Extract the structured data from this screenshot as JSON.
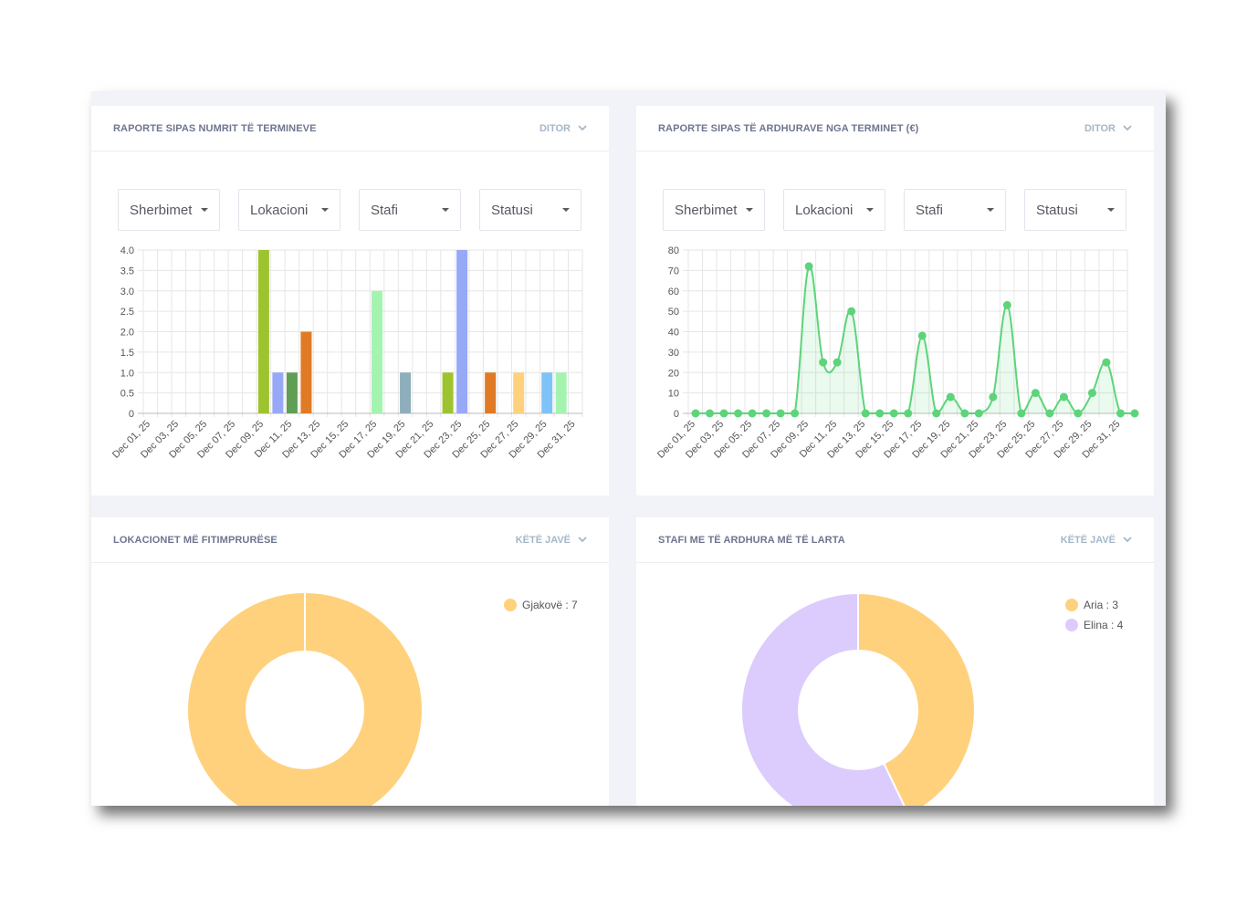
{
  "colors": {
    "green_line": "#5dd47a",
    "green_fill": "rgba(93,212,122,0.12)",
    "donut_orange": "#ffd17d",
    "donut_purple": "#dccbfd"
  },
  "card1": {
    "title": "RAPORTE SIPAS NUMRIT TË TERMINEVE",
    "period": "DITOR",
    "filters": [
      "Sherbimet",
      "Lokacioni",
      "Stafi",
      "Statusi"
    ]
  },
  "card2": {
    "title": "RAPORTE SIPAS TË ARDHURAVE NGA TERMINET (€)",
    "period": "DITOR",
    "filters": [
      "Sherbimet",
      "Lokacioni",
      "Stafi",
      "Statusi"
    ]
  },
  "card3": {
    "title": "LOKACIONET MË FITIMPRURËSE",
    "period": "KËTË JAVË",
    "legend": [
      {
        "label": "Gjakovë : 7",
        "color": "#ffd17d"
      }
    ]
  },
  "card4": {
    "title": "STAFI ME TË ARDHURA MË TË LARTA",
    "period": "KËTË JAVË",
    "legend": [
      {
        "label": "Aria : 3",
        "color": "#ffd17d"
      },
      {
        "label": "Elina : 4",
        "color": "#dccbfd"
      }
    ]
  },
  "chart_data": [
    {
      "type": "bar",
      "title": "RAPORTE SIPAS NUMRIT TË TERMINEVE",
      "ylim": [
        0,
        4.0
      ],
      "yticks": [
        "4.0",
        "3.5",
        "3.0",
        "2.5",
        "2.0",
        "1.5",
        "1.0",
        "0.5",
        "0"
      ],
      "xtick_labels": [
        "Dec 01, 25",
        "Dec 03, 25",
        "Dec 05, 25",
        "Dec 07, 25",
        "Dec 09, 25",
        "Dec 11, 25",
        "Dec 13, 25",
        "Dec 15, 25",
        "Dec 17, 25",
        "Dec 19, 25",
        "Dec 21, 25",
        "Dec 23, 25",
        "Dec 25, 25",
        "Dec 27, 25",
        "Dec 29, 25",
        "Dec 31, 25"
      ],
      "bars": [
        {
          "day": 9,
          "value": 4,
          "color": "#9dc42f"
        },
        {
          "day": 10,
          "value": 1,
          "color": "#97a8f7"
        },
        {
          "day": 11,
          "value": 1,
          "color": "#5f9e54"
        },
        {
          "day": 12,
          "value": 2,
          "color": "#e07a24"
        },
        {
          "day": 17,
          "value": 3,
          "color": "#a4f4b0"
        },
        {
          "day": 19,
          "value": 1,
          "color": "#8eaebc"
        },
        {
          "day": 22,
          "value": 1,
          "color": "#9dc42f"
        },
        {
          "day": 23,
          "value": 4,
          "color": "#97a8f7"
        },
        {
          "day": 25,
          "value": 1,
          "color": "#e07a24"
        },
        {
          "day": 27,
          "value": 1,
          "color": "#ffd17d"
        },
        {
          "day": 29,
          "value": 1,
          "color": "#7fc2f7"
        },
        {
          "day": 30,
          "value": 1,
          "color": "#a4f4b0"
        }
      ]
    },
    {
      "type": "area",
      "title": "RAPORTE SIPAS TË ARDHURAVE NGA TERMINET (€)",
      "ylim": [
        0,
        80
      ],
      "yticks": [
        "80",
        "70",
        "60",
        "50",
        "40",
        "30",
        "20",
        "10",
        "0"
      ],
      "xtick_labels": [
        "Dec 01, 25",
        "Dec 03, 25",
        "Dec 05, 25",
        "Dec 07, 25",
        "Dec 09, 25",
        "Dec 11, 25",
        "Dec 13, 25",
        "Dec 15, 25",
        "Dec 17, 25",
        "Dec 19, 25",
        "Dec 21, 25",
        "Dec 23, 25",
        "Dec 25, 25",
        "Dec 27, 25",
        "Dec 29, 25",
        "Dec 31, 25"
      ],
      "values": [
        0,
        0,
        0,
        0,
        0,
        0,
        0,
        0,
        72,
        25,
        25,
        50,
        0,
        0,
        0,
        0,
        38,
        0,
        8,
        0,
        0,
        8,
        53,
        0,
        10,
        0,
        8,
        0,
        10,
        25,
        0,
        0
      ]
    },
    {
      "type": "pie",
      "title": "LOKACIONET MË FITIMPRURËSE",
      "labels": [
        "Gjakovë"
      ],
      "values": [
        7
      ]
    },
    {
      "type": "pie",
      "title": "STAFI ME TË ARDHURA MË TË LARTA",
      "labels": [
        "Aria",
        "Elina"
      ],
      "values": [
        3,
        4
      ]
    }
  ]
}
